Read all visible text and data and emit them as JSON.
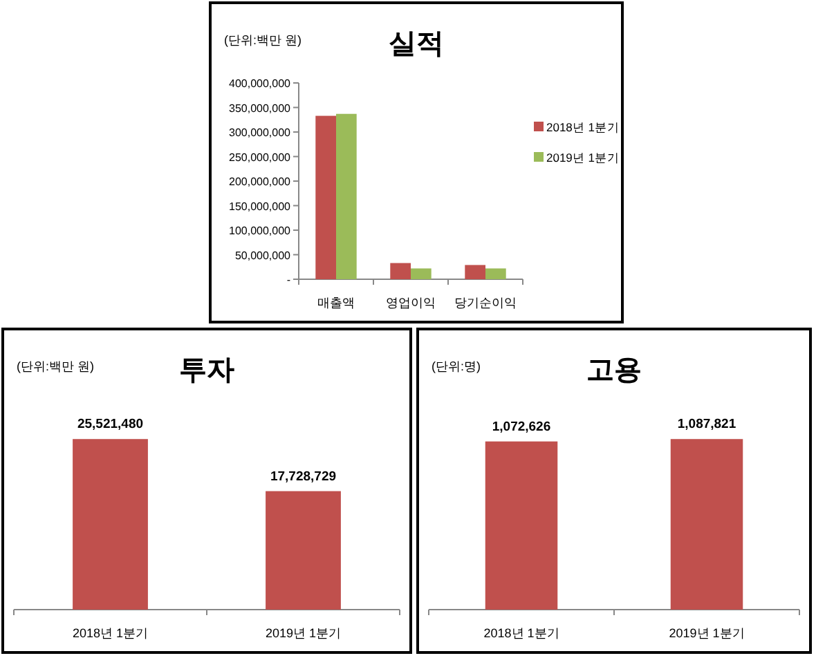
{
  "chart_data": [
    {
      "type": "bar",
      "title": "실적",
      "annotations": [
        "(단위:백만 원)"
      ],
      "categories": [
        "매출액",
        "영업이익",
        "당기순이익"
      ],
      "series": [
        {
          "name": "2018년 1분기",
          "color": "#c0504d",
          "values": [
            333000000,
            33000000,
            29000000
          ]
        },
        {
          "name": "2019년 1분기",
          "color": "#9bbb59",
          "values": [
            337000000,
            22000000,
            22000000
          ]
        }
      ],
      "ylim": [
        0,
        400000000
      ],
      "yticks": [
        {
          "value": 0,
          "label": "-"
        },
        {
          "value": 50000000,
          "label": "50,000,000"
        },
        {
          "value": 100000000,
          "label": "100,000,000"
        },
        {
          "value": 150000000,
          "label": "150,000,000"
        },
        {
          "value": 200000000,
          "label": "200,000,000"
        },
        {
          "value": 250000000,
          "label": "250,000,000"
        },
        {
          "value": 300000000,
          "label": "300,000,000"
        },
        {
          "value": 350000000,
          "label": "350,000,000"
        },
        {
          "value": 400000000,
          "label": "400,000,000"
        }
      ],
      "legend": "right"
    },
    {
      "type": "bar",
      "title": "투자",
      "annotations": [
        "(단위:백만 원)"
      ],
      "categories": [
        "2018년 1분기",
        "2019년 1분기"
      ],
      "values": [
        25521480,
        17728729
      ],
      "value_labels": [
        "25,521,480",
        "17,728,729"
      ],
      "color": "#c0504d",
      "tick_labels": "x"
    },
    {
      "type": "bar",
      "title": "고용",
      "annotations": [
        "(단위:명)"
      ],
      "categories": [
        "2018년 1분기",
        "2019년 1분기"
      ],
      "values": [
        1072626,
        1087821
      ],
      "value_labels": [
        "1,072,626",
        "1,087,821"
      ],
      "color": "#c0504d",
      "tick_labels": "x"
    }
  ]
}
